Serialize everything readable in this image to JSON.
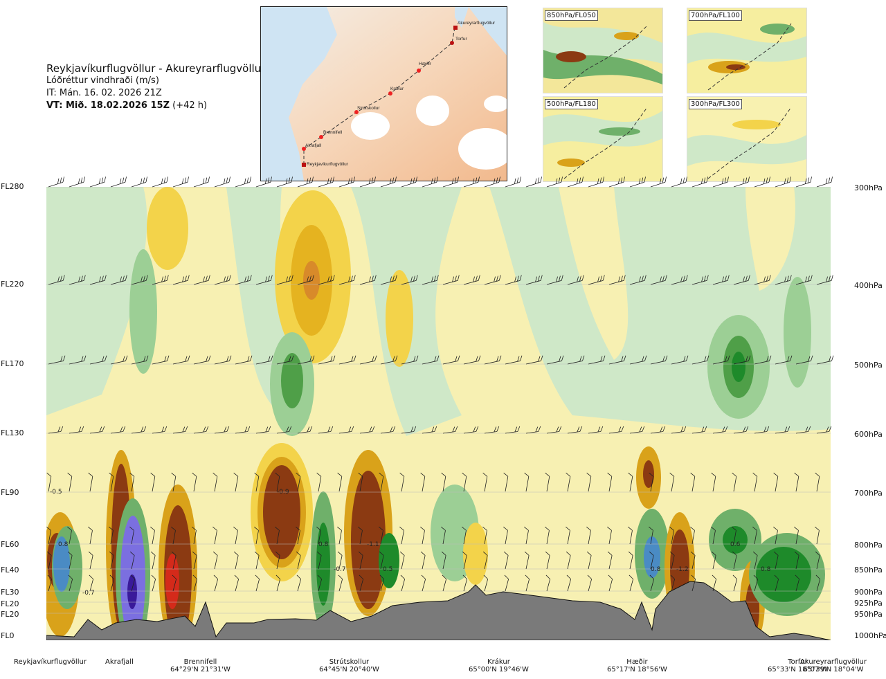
{
  "header": {
    "route": "Reykjavíkurflugvöllur - Akureyrarflugvöllur",
    "parameter": "Lóðréttur vindhraði (m/s)",
    "issue_time": "IT: Mán. 16. 02. 2026 21Z",
    "valid_bold": "VT: Mið. 18.02.2026 15Z",
    "valid_lead": "(+42 h)"
  },
  "map": {
    "points": [
      "Akureyrarflugvöllur",
      "Torfur",
      "Hæðir",
      "Krákur",
      "Strútskollur",
      "Brennifell",
      "Akrafjall",
      "Reykjavíkurflugvöllur"
    ]
  },
  "thumbnails": [
    "850hPa/FL050",
    "700hPa/FL100",
    "500hPa/FL180",
    "300hPa/FL300"
  ],
  "left_axis": [
    "FL280",
    "FL220",
    "FL170",
    "FL130",
    "FL90",
    "FL60",
    "FL40",
    "FL30",
    "FL20",
    "FL20",
    "FL0"
  ],
  "right_axis": [
    "300hPa",
    "400hPa",
    "500hPa",
    "600hPa",
    "700hPa",
    "800hPa",
    "850hPa",
    "900hPa",
    "925hPa",
    "950hPa",
    "1000hPa"
  ],
  "locations": [
    {
      "name": "Reykjavíkurflugvöllur",
      "coord": ""
    },
    {
      "name": "Akrafjall",
      "coord": ""
    },
    {
      "name": "Brennifell",
      "coord": "64°29'N 21°31'W"
    },
    {
      "name": "Strútskollur",
      "coord": "64°45'N 20°40'W"
    },
    {
      "name": "Krákur",
      "coord": "65°00'N 19°46'W"
    },
    {
      "name": "Hæðir",
      "coord": "65°17'N 18°56'W"
    },
    {
      "name": "Torfur",
      "coord": "65°33'N 18°07'W"
    },
    {
      "name": "Akureyrarflugvöllur",
      "coord": "65°39'N 18°04'W"
    }
  ],
  "contour_values": [
    "-0.5",
    "0.8",
    "-0.7",
    "-0.9",
    "0.8",
    "-0.7",
    "-1.1",
    "0.5",
    "0.8",
    "-1.2",
    "0.6",
    "0.8"
  ],
  "colors": {
    "strong_down": "#8b3a12",
    "down": "#d9a21a",
    "weak_down": "#f5ec9c",
    "weak_up": "#cfe8c8",
    "up": "#6fb06a",
    "strong_up": "#1e8a2a",
    "very_strong_up": "#7b6fe0",
    "terrain": "#7a7a7a"
  }
}
